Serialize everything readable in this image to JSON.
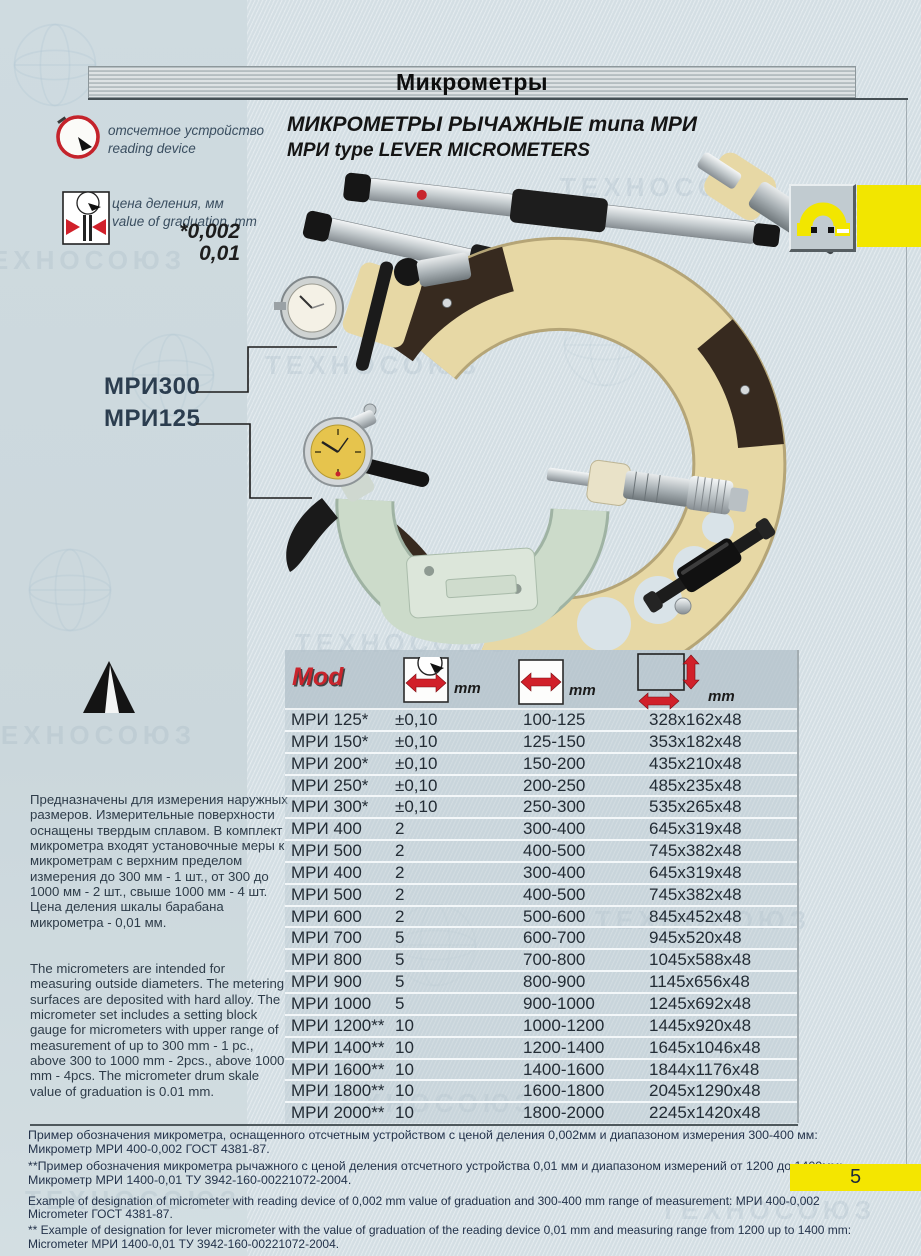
{
  "page": {
    "header_title": "Микрометры",
    "page_number": "5",
    "watermark": "ТЕХНОСОЮЗ"
  },
  "content": {
    "title_ru": "МИКРОМЕТРЫ РЫЧАЖНЫЕ типа МРИ",
    "title_en": "МРИ type LEVER MICROMETERS"
  },
  "sidebar": {
    "reading_device": {
      "label_ru": "отсчетное устройство",
      "label_en": "reading device"
    },
    "graduation": {
      "label_ru": "цена деления, мм",
      "label_en": "value of graduation, mm",
      "value_precise": "*0,002",
      "value_standard": "0,01"
    },
    "model_label_top": "МРИ300",
    "model_label_bottom": "МРИ125",
    "description_ru": "Предназначены для измерения наружных размеров. Измерительные поверхности оснащены твердым сплавом. В комплект микрометра входят установочные меры к микрометрам с верхним пределом измерения до 300 мм - 1 шт., от 300 до 1000 мм - 2 шт., свыше 1000 мм - 4 шт. Цена деления шкалы барабана микрометра - 0,01 мм.",
    "description_en": "The micrometers are intended for measuring outside diameters. The metering surfaces are deposited with hard alloy. The micrometer set includes a setting block gauge for micrometers with upper range of measurement of up to 300 mm - 1 pc., above 300 to 1000 mm - 2pcs., above 1000 mm - 4pcs. The micrometer drum skale value of graduation is 0.01 mm."
  },
  "table": {
    "mod_label": "Mod",
    "unit_accuracy": "mm",
    "unit_range": "mm",
    "unit_dimensions": "mm",
    "rows": [
      {
        "mod": "МРИ 125*",
        "accuracy": "±0,10",
        "range": "100-125",
        "dimensions": "328x162x48"
      },
      {
        "mod": "МРИ 150*",
        "accuracy": "±0,10",
        "range": "125-150",
        "dimensions": "353x182x48"
      },
      {
        "mod": "МРИ 200*",
        "accuracy": "±0,10",
        "range": "150-200",
        "dimensions": "435x210x48"
      },
      {
        "mod": "МРИ 250*",
        "accuracy": "±0,10",
        "range": "200-250",
        "dimensions": "485x235x48"
      },
      {
        "mod": "МРИ 300*",
        "accuracy": "±0,10",
        "range": "250-300",
        "dimensions": "535x265x48"
      },
      {
        "mod": "МРИ 400",
        "accuracy": "2",
        "range": "300-400",
        "dimensions": "645x319x48"
      },
      {
        "mod": "МРИ 500",
        "accuracy": "2",
        "range": "400-500",
        "dimensions": "745x382x48"
      },
      {
        "mod": "МРИ 400",
        "accuracy": "2",
        "range": "300-400",
        "dimensions": "645x319x48"
      },
      {
        "mod": "МРИ 500",
        "accuracy": "2",
        "range": "400-500",
        "dimensions": "745x382x48"
      },
      {
        "mod": "МРИ 600",
        "accuracy": "2",
        "range": "500-600",
        "dimensions": "845x452x48"
      },
      {
        "mod": "МРИ 700",
        "accuracy": "5",
        "range": "600-700",
        "dimensions": "945x520x48"
      },
      {
        "mod": "МРИ 800",
        "accuracy": "5",
        "range": "700-800",
        "dimensions": "1045x588x48"
      },
      {
        "mod": "МРИ 900",
        "accuracy": "5",
        "range": "800-900",
        "dimensions": "1145x656x48"
      },
      {
        "mod": "МРИ 1000",
        "accuracy": "5",
        "range": "900-1000",
        "dimensions": "1245x692x48"
      },
      {
        "mod": "МРИ 1200**",
        "accuracy": "10",
        "range": "1000-1200",
        "dimensions": "1445x920x48"
      },
      {
        "mod": "МРИ 1400**",
        "accuracy": "10",
        "range": "1200-1400",
        "dimensions": "1645x1046x48"
      },
      {
        "mod": "МРИ 1600**",
        "accuracy": "10",
        "range": "1400-1600",
        "dimensions": "1844x1176x48"
      },
      {
        "mod": "МРИ 1800**",
        "accuracy": "10",
        "range": "1600-1800",
        "dimensions": "2045x1290x48"
      },
      {
        "mod": "МРИ 2000**",
        "accuracy": "10",
        "range": "1800-2000",
        "dimensions": "2245x1420x48"
      }
    ]
  },
  "footnotes": {
    "groups": [
      [
        "Пример обозначения микрометра, оснащенного отсчетным устройством с ценой деления 0,002мм и диапазоном измерения 300-400 мм:",
        "Микрометр МРИ 400-0,002 ГОСТ 4381-87."
      ],
      [
        "**Пример обозначения микрометра рычажного с ценой деления отсчетного устройства 0,01 мм и диапазоном измерений от 1200 до 1400мм:",
        "Микрометр МРИ 1400-0,01 ТУ 3942-160-00221072-2004."
      ],
      [
        "Example of designation of micrometer with reading device of 0,002 mm value of graduation and 300-400 mm range of measurement: МРИ 400-0,002",
        "Micrometer ГОСТ 4381-87."
      ],
      [
        "** Example of designation for lever micrometer with the value of graduation of the reading device 0,01 mm and measuring range from 1200 up to 1400 mm:",
        "Micrometer МРИ 1400-0,01 ТУ 3942-160-00221072-2004."
      ]
    ]
  },
  "colors": {
    "accent_red": "#c8242c",
    "highlight_yellow": "#f2e600",
    "frame_cream": "#e7d8a5",
    "frame_mint": "#ccdbca"
  }
}
